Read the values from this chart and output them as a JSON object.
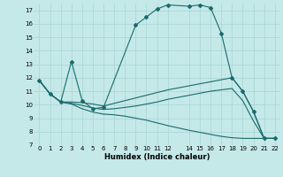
{
  "xlabel": "Humidex (Indice chaleur)",
  "xlim": [
    -0.5,
    22.5
  ],
  "ylim": [
    7,
    17.5
  ],
  "yticks": [
    7,
    8,
    9,
    10,
    11,
    12,
    13,
    14,
    15,
    16,
    17
  ],
  "xticks": [
    0,
    1,
    2,
    3,
    4,
    5,
    6,
    7,
    8,
    9,
    10,
    11,
    12,
    14,
    15,
    16,
    17,
    18,
    19,
    20,
    21,
    22
  ],
  "bg_color": "#c5e8e8",
  "line_color": "#1a6b6b",
  "grid_color": "#a8d4d4",
  "lines": [
    {
      "x": [
        0,
        1,
        2,
        3,
        4,
        5,
        6,
        9,
        10,
        11,
        12,
        14,
        15,
        16,
        17,
        18,
        19,
        20,
        21,
        22
      ],
      "y": [
        11.8,
        10.8,
        10.2,
        13.2,
        10.3,
        9.7,
        9.8,
        15.9,
        16.5,
        17.1,
        17.4,
        17.3,
        17.4,
        17.2,
        15.3,
        12.0,
        11.0,
        9.5,
        7.5,
        7.5
      ],
      "marker": "D",
      "markersize": 2.0
    },
    {
      "x": [
        0,
        1,
        2,
        3,
        4,
        5,
        6,
        7,
        8,
        9,
        10,
        11,
        12,
        14,
        15,
        16,
        17,
        18,
        19,
        20,
        21,
        22
      ],
      "y": [
        11.8,
        10.8,
        10.2,
        10.2,
        10.15,
        10.05,
        9.9,
        10.1,
        10.3,
        10.5,
        10.7,
        10.9,
        11.1,
        11.4,
        11.55,
        11.7,
        11.85,
        12.0,
        11.0,
        9.5,
        7.5,
        7.5
      ],
      "marker": null,
      "markersize": 0
    },
    {
      "x": [
        0,
        1,
        2,
        3,
        4,
        5,
        6,
        7,
        8,
        9,
        10,
        11,
        12,
        14,
        15,
        16,
        17,
        18,
        19,
        20,
        21,
        22
      ],
      "y": [
        11.8,
        10.8,
        10.2,
        10.1,
        9.95,
        9.75,
        9.65,
        9.7,
        9.8,
        9.9,
        10.05,
        10.2,
        10.4,
        10.7,
        10.85,
        11.0,
        11.1,
        11.2,
        10.3,
        8.8,
        7.5,
        7.5
      ],
      "marker": null,
      "markersize": 0
    },
    {
      "x": [
        0,
        1,
        2,
        3,
        4,
        5,
        6,
        7,
        8,
        9,
        10,
        11,
        12,
        14,
        15,
        16,
        17,
        18,
        19,
        20,
        21,
        22
      ],
      "y": [
        11.8,
        10.8,
        10.2,
        10.05,
        9.7,
        9.45,
        9.3,
        9.25,
        9.15,
        9.0,
        8.85,
        8.65,
        8.45,
        8.1,
        7.95,
        7.8,
        7.65,
        7.55,
        7.5,
        7.5,
        7.5,
        7.5
      ],
      "marker": null,
      "markersize": 0
    }
  ]
}
